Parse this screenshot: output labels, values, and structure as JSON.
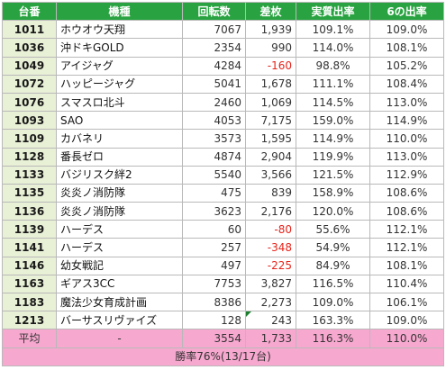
{
  "headers": {
    "id": "台番",
    "name": "機種",
    "spins": "回転数",
    "diff": "差枚",
    "rate": "実質出率",
    "rate6": "6の出率"
  },
  "rows": [
    {
      "id": "1011",
      "name": "ホウオウ天翔",
      "spins": "7067",
      "diff": "1,939",
      "rate": "109.1%",
      "rate6": "109.0%",
      "neg": false
    },
    {
      "id": "1036",
      "name": "沖ドキGOLD",
      "spins": "2354",
      "diff": "990",
      "rate": "114.0%",
      "rate6": "108.1%",
      "neg": false
    },
    {
      "id": "1049",
      "name": "アイジャグ",
      "spins": "4284",
      "diff": "-160",
      "rate": "98.8%",
      "rate6": "105.2%",
      "neg": true
    },
    {
      "id": "1072",
      "name": "ハッピージャグ",
      "spins": "5041",
      "diff": "1,678",
      "rate": "111.1%",
      "rate6": "108.4%",
      "neg": false
    },
    {
      "id": "1076",
      "name": "スマスロ北斗",
      "spins": "2460",
      "diff": "1,069",
      "rate": "114.5%",
      "rate6": "113.0%",
      "neg": false
    },
    {
      "id": "1093",
      "name": "SAO",
      "spins": "4053",
      "diff": "7,175",
      "rate": "159.0%",
      "rate6": "114.9%",
      "neg": false
    },
    {
      "id": "1109",
      "name": "カバネリ",
      "spins": "3573",
      "diff": "1,595",
      "rate": "114.9%",
      "rate6": "110.0%",
      "neg": false
    },
    {
      "id": "1128",
      "name": "番長ゼロ",
      "spins": "4874",
      "diff": "2,904",
      "rate": "119.9%",
      "rate6": "113.0%",
      "neg": false
    },
    {
      "id": "1133",
      "name": "バジリスク絆2",
      "spins": "5540",
      "diff": "3,566",
      "rate": "121.5%",
      "rate6": "112.9%",
      "neg": false
    },
    {
      "id": "1135",
      "name": "炎炎ノ消防隊",
      "spins": "475",
      "diff": "839",
      "rate": "158.9%",
      "rate6": "108.6%",
      "neg": false
    },
    {
      "id": "1136",
      "name": "炎炎ノ消防隊",
      "spins": "3623",
      "diff": "2,176",
      "rate": "120.0%",
      "rate6": "108.6%",
      "neg": false
    },
    {
      "id": "1139",
      "name": "ハーデス",
      "spins": "60",
      "diff": "-80",
      "rate": "55.6%",
      "rate6": "112.1%",
      "neg": true
    },
    {
      "id": "1141",
      "name": "ハーデス",
      "spins": "257",
      "diff": "-348",
      "rate": "54.9%",
      "rate6": "112.1%",
      "neg": true
    },
    {
      "id": "1146",
      "name": "幼女戦記",
      "spins": "497",
      "diff": "-225",
      "rate": "84.9%",
      "rate6": "108.1%",
      "neg": true
    },
    {
      "id": "1163",
      "name": "ギアス3CC",
      "spins": "7753",
      "diff": "3,827",
      "rate": "116.5%",
      "rate6": "110.4%",
      "neg": false
    },
    {
      "id": "1183",
      "name": "魔法少女育成計画",
      "spins": "8386",
      "diff": "2,273",
      "rate": "109.0%",
      "rate6": "106.1%",
      "neg": false
    },
    {
      "id": "1213",
      "name": "バーサスリヴァイズ",
      "spins": "128",
      "diff": "243",
      "rate": "163.3%",
      "rate6": "109.0%",
      "neg": false
    }
  ],
  "average": {
    "label": "平均",
    "name": "-",
    "spins": "3554",
    "diff": "1,733",
    "rate": "116.3%",
    "rate6": "110.0%"
  },
  "summary": "勝率76%(13/17台)",
  "colors": {
    "header_bg": "#29a341",
    "id_bg": "#e8f0d6",
    "negative": "#e8241b",
    "avg_bg": "#f7a8cf"
  }
}
